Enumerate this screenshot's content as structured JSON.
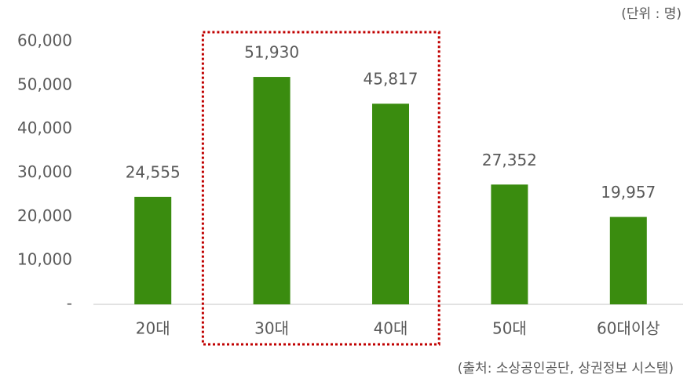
{
  "chart_data": {
    "type": "bar",
    "unit_note": "(단위 : 명)",
    "source": "(출처: 소상공인공단, 상권정보 시스템)",
    "categories": [
      "20대",
      "30대",
      "40대",
      "50대",
      "60대이상"
    ],
    "values": [
      24555,
      51930,
      45817,
      27352,
      19957
    ],
    "value_labels": [
      "24,555",
      "51,930",
      "45,817",
      "27,352",
      "19,957"
    ],
    "color": "#3a8c0f",
    "ylim": [
      0,
      60000
    ],
    "yticks": [
      {
        "value": 0,
        "label": "-"
      },
      {
        "value": 10000,
        "label": "10,000"
      },
      {
        "value": 20000,
        "label": "20,000"
      },
      {
        "value": 30000,
        "label": "30,000"
      },
      {
        "value": 40000,
        "label": "40,000"
      },
      {
        "value": 50000,
        "label": "50,000"
      },
      {
        "value": 60000,
        "label": "60,000"
      }
    ],
    "grid": false
  }
}
